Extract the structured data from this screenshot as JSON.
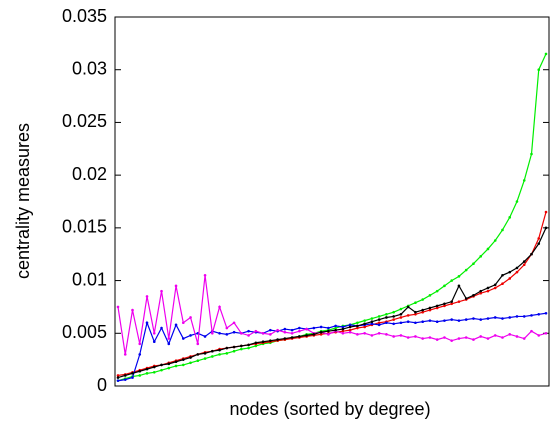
{
  "chart_data": {
    "type": "line",
    "xlabel": "nodes (sorted by degree)",
    "ylabel": "centrality measures",
    "ylim": [
      0,
      0.035
    ],
    "yticks": [
      0,
      0.005,
      0.01,
      0.015,
      0.02,
      0.025,
      0.03,
      0.035
    ],
    "grid": false,
    "series": [
      {
        "color": "#00ee00",
        "values": [
          0.0005,
          0.0007,
          0.0009,
          0.001,
          0.0012,
          0.0013,
          0.0015,
          0.0017,
          0.0019,
          0.002,
          0.0022,
          0.0024,
          0.0026,
          0.0028,
          0.003,
          0.0031,
          0.0033,
          0.0035,
          0.0036,
          0.0038,
          0.004,
          0.0041,
          0.0043,
          0.0044,
          0.0046,
          0.0047,
          0.0049,
          0.005,
          0.0052,
          0.0053,
          0.0055,
          0.0057,
          0.0058,
          0.006,
          0.0062,
          0.0064,
          0.0066,
          0.0068,
          0.007,
          0.0073,
          0.0076,
          0.0079,
          0.0082,
          0.0086,
          0.009,
          0.0095,
          0.01,
          0.0104,
          0.011,
          0.0116,
          0.0123,
          0.013,
          0.0138,
          0.0148,
          0.016,
          0.0175,
          0.0195,
          0.022,
          0.03,
          0.0315
        ]
      },
      {
        "color": "#ee0000",
        "values": [
          0.001,
          0.0011,
          0.0013,
          0.0015,
          0.0017,
          0.0019,
          0.002,
          0.0022,
          0.0024,
          0.0026,
          0.0028,
          0.003,
          0.0032,
          0.0033,
          0.0035,
          0.0036,
          0.0037,
          0.0038,
          0.0039,
          0.004,
          0.0041,
          0.0042,
          0.0043,
          0.0044,
          0.0045,
          0.0046,
          0.0047,
          0.0048,
          0.0049,
          0.005,
          0.0051,
          0.0052,
          0.0053,
          0.0055,
          0.0056,
          0.0058,
          0.006,
          0.0061,
          0.0063,
          0.0065,
          0.0067,
          0.0068,
          0.007,
          0.0072,
          0.0074,
          0.0076,
          0.0078,
          0.008,
          0.0082,
          0.0085,
          0.0088,
          0.009,
          0.0093,
          0.0097,
          0.0102,
          0.0108,
          0.0115,
          0.0125,
          0.014,
          0.0165
        ]
      },
      {
        "color": "#0000ee",
        "values": [
          0.0005,
          0.0006,
          0.0008,
          0.003,
          0.006,
          0.0042,
          0.0055,
          0.004,
          0.0058,
          0.0045,
          0.0048,
          0.005,
          0.0047,
          0.0052,
          0.005,
          0.0049,
          0.0051,
          0.005,
          0.0052,
          0.0051,
          0.005,
          0.0053,
          0.0052,
          0.0054,
          0.0053,
          0.0055,
          0.0054,
          0.0055,
          0.0056,
          0.0055,
          0.0057,
          0.0056,
          0.0058,
          0.0057,
          0.0058,
          0.0059,
          0.0058,
          0.006,
          0.0059,
          0.006,
          0.0061,
          0.006,
          0.0061,
          0.0062,
          0.0061,
          0.0062,
          0.0063,
          0.0062,
          0.0063,
          0.0064,
          0.0063,
          0.0064,
          0.0065,
          0.0064,
          0.0065,
          0.0066,
          0.0066,
          0.0067,
          0.0068,
          0.0069
        ]
      },
      {
        "color": "#ee00ee",
        "values": [
          0.0075,
          0.003,
          0.0072,
          0.004,
          0.0085,
          0.005,
          0.009,
          0.0045,
          0.0095,
          0.006,
          0.0065,
          0.004,
          0.0105,
          0.005,
          0.0075,
          0.0055,
          0.006,
          0.005,
          0.0048,
          0.0052,
          0.005,
          0.0049,
          0.0053,
          0.0051,
          0.005,
          0.0052,
          0.0054,
          0.005,
          0.0051,
          0.0049,
          0.0052,
          0.005,
          0.0051,
          0.0049,
          0.005,
          0.0048,
          0.005,
          0.0049,
          0.0047,
          0.0048,
          0.0046,
          0.0047,
          0.0045,
          0.0046,
          0.0044,
          0.0046,
          0.0043,
          0.0045,
          0.0046,
          0.0044,
          0.0047,
          0.0045,
          0.0048,
          0.0046,
          0.0049,
          0.0047,
          0.0045,
          0.0052,
          0.0048,
          0.005
        ]
      },
      {
        "color": "#000000",
        "values": [
          0.0008,
          0.001,
          0.0012,
          0.0014,
          0.0016,
          0.0018,
          0.002,
          0.0021,
          0.0023,
          0.0025,
          0.0027,
          0.003,
          0.0031,
          0.0033,
          0.0034,
          0.0036,
          0.0037,
          0.0038,
          0.0039,
          0.0041,
          0.0042,
          0.0043,
          0.0044,
          0.0045,
          0.0046,
          0.0047,
          0.0048,
          0.0049,
          0.0051,
          0.0052,
          0.0053,
          0.0054,
          0.0056,
          0.0057,
          0.0059,
          0.0061,
          0.0063,
          0.0065,
          0.0066,
          0.0068,
          0.0075,
          0.007,
          0.0072,
          0.0074,
          0.0076,
          0.0078,
          0.008,
          0.0095,
          0.0083,
          0.0086,
          0.009,
          0.0093,
          0.0096,
          0.0105,
          0.0108,
          0.0112,
          0.0118,
          0.0125,
          0.0135,
          0.015
        ]
      }
    ]
  }
}
